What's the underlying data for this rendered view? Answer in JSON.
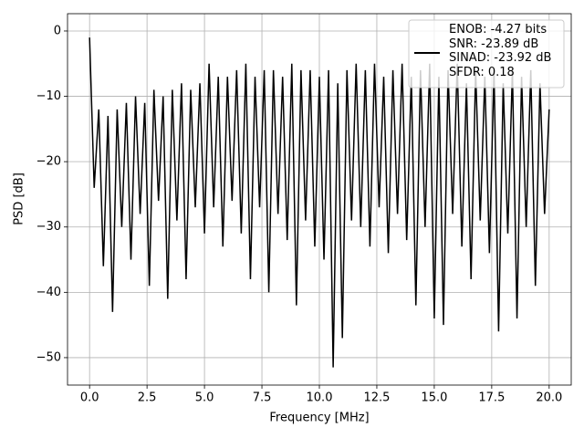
{
  "chart_data": {
    "type": "line",
    "xlabel": "Frequency [MHz]",
    "ylabel": "PSD [dB]",
    "x": [
      0,
      0.2,
      0.4,
      0.6,
      0.8,
      1.0,
      1.2,
      1.4,
      1.6,
      1.8,
      2.0,
      2.2,
      2.4,
      2.6,
      2.8,
      3.0,
      3.2,
      3.4,
      3.6,
      3.8,
      4.0,
      4.2,
      4.4,
      4.6,
      4.8,
      5.0,
      5.2,
      5.4,
      5.6,
      5.8,
      6.0,
      6.2,
      6.4,
      6.6,
      6.8,
      7.0,
      7.2,
      7.4,
      7.6,
      7.8,
      8.0,
      8.2,
      8.4,
      8.6,
      8.8,
      9.0,
      9.2,
      9.4,
      9.6,
      9.8,
      10.0,
      10.2,
      10.4,
      10.6,
      10.8,
      11.0,
      11.2,
      11.4,
      11.6,
      11.8,
      12.0,
      12.2,
      12.4,
      12.6,
      12.8,
      13.0,
      13.2,
      13.4,
      13.6,
      13.8,
      14.0,
      14.2,
      14.4,
      14.6,
      14.8,
      15.0,
      15.2,
      15.4,
      15.6,
      15.8,
      16.0,
      16.2,
      16.4,
      16.6,
      16.8,
      17.0,
      17.2,
      17.4,
      17.6,
      17.8,
      18.0,
      18.2,
      18.4,
      18.6,
      18.8,
      19.0,
      19.2,
      19.4,
      19.6,
      19.8,
      20.0
    ],
    "series": [
      {
        "name": "ENOB: -4.27 bits\nSNR: -23.89 dB\nSINAD: -23.92 dB\nSFDR: 0.18",
        "color": "#000000",
        "values": [
          -1,
          -24,
          -12,
          -36,
          -13,
          -43,
          -12,
          -30,
          -11,
          -35,
          -10,
          -28,
          -11,
          -39,
          -9,
          -26,
          -10,
          -41,
          -9,
          -29,
          -8,
          -38,
          -9,
          -27,
          -8,
          -31,
          -5,
          -27,
          -7,
          -33,
          -7,
          -26,
          -6,
          -31,
          -5,
          -38,
          -7,
          -27,
          -6,
          -40,
          -6,
          -28,
          -7,
          -32,
          -5,
          -42,
          -6,
          -29,
          -6,
          -33,
          -7,
          -35,
          -6,
          -51.5,
          -8,
          -47,
          -6,
          -29,
          -5,
          -30,
          -6,
          -33,
          -5,
          -27,
          -7,
          -34,
          -6,
          -28,
          -5,
          -32,
          -7,
          -42,
          -6,
          -30,
          -5,
          -44,
          -7,
          -45,
          -6,
          -28,
          -5,
          -33,
          -8,
          -38,
          -6,
          -29,
          -7,
          -34,
          -6,
          -46,
          -8,
          -31,
          -6,
          -44,
          -7,
          -30,
          -6,
          -39,
          -8,
          -28,
          -12
        ]
      }
    ],
    "xlim": [
      -0.96,
      20.96
    ],
    "xticks": [
      {
        "value": 0,
        "label": "0.0"
      },
      2.5,
      {
        "value": 5,
        "label": "5.0"
      },
      7.5,
      {
        "value": 10,
        "label": "10.0"
      },
      12.5,
      {
        "value": 15,
        "label": "15.0"
      },
      17.5,
      {
        "value": 20,
        "label": "20.0"
      }
    ],
    "ylim": [
      -54.2,
      2.65
    ],
    "yticks": [
      {
        "value": -50,
        "label": "−50"
      },
      {
        "value": -40,
        "label": "−40"
      },
      {
        "value": -30,
        "label": "−30"
      },
      {
        "value": -20,
        "label": "−20"
      },
      {
        "value": -10,
        "label": "−10"
      },
      0
    ],
    "grid": true,
    "legend": "upper right"
  }
}
